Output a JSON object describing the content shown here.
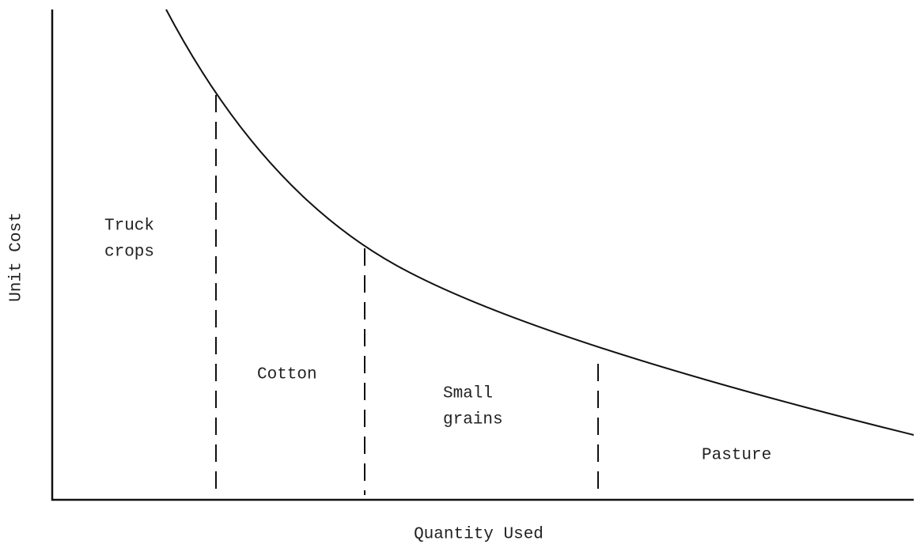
{
  "axes": {
    "x_label": "Quantity Used",
    "y_label": "Unit Cost"
  },
  "regions": [
    {
      "lines": [
        "Truck",
        "crops"
      ]
    },
    {
      "lines": [
        "Cotton"
      ]
    },
    {
      "lines": [
        "Small",
        "grains"
      ]
    },
    {
      "lines": [
        "Pasture"
      ]
    }
  ]
}
